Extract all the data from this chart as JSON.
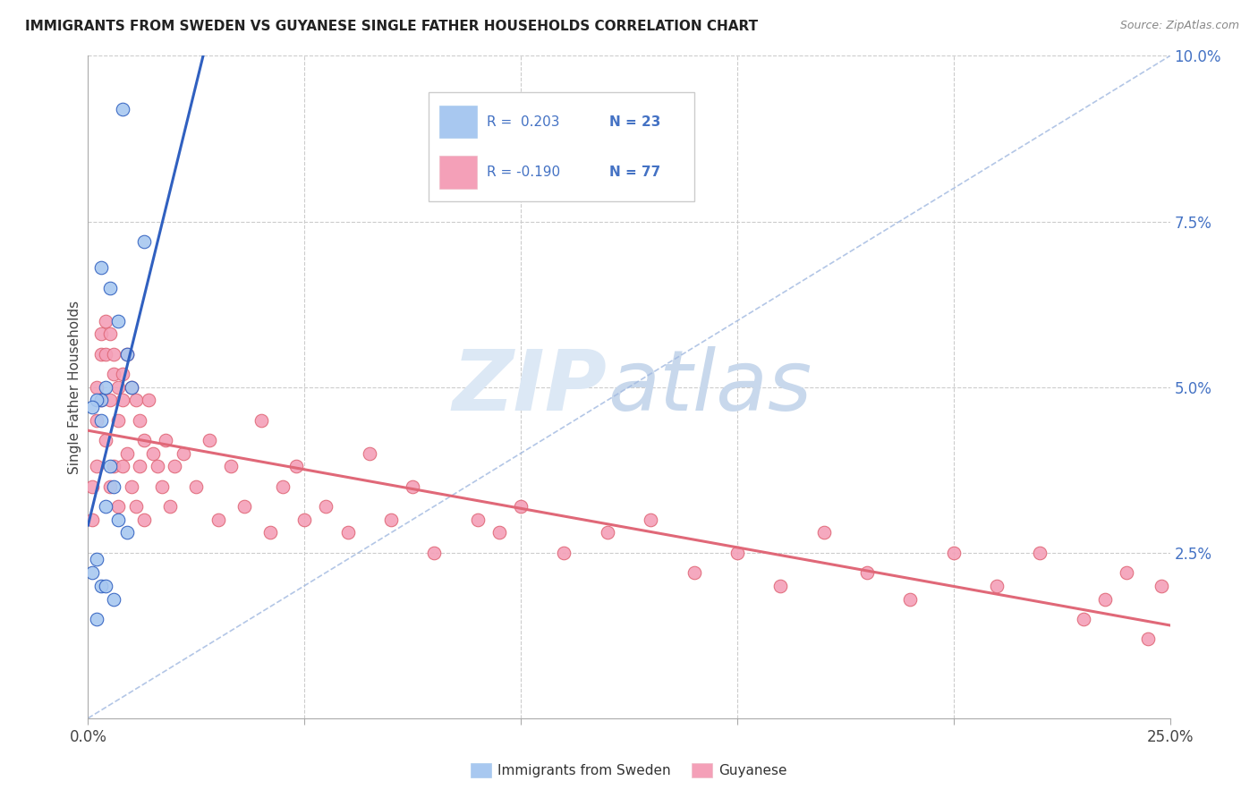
{
  "title": "IMMIGRANTS FROM SWEDEN VS GUYANESE SINGLE FATHER HOUSEHOLDS CORRELATION CHART",
  "source": "Source: ZipAtlas.com",
  "ylabel": "Single Father Households",
  "xlim": [
    0.0,
    0.25
  ],
  "ylim": [
    0.0,
    0.1
  ],
  "color_blue": "#A8C8F0",
  "color_pink": "#F4A0B8",
  "color_blue_line": "#3060C0",
  "color_pink_line": "#E06878",
  "color_dash": "#A0B8E0",
  "color_legend_text": "#4472C4",
  "background": "#FFFFFF",
  "sweden_x": [
    0.008,
    0.013,
    0.003,
    0.005,
    0.007,
    0.009,
    0.01,
    0.003,
    0.004,
    0.002,
    0.001,
    0.003,
    0.005,
    0.006,
    0.004,
    0.007,
    0.009,
    0.002,
    0.001,
    0.003,
    0.004,
    0.006,
    0.002
  ],
  "sweden_y": [
    0.092,
    0.072,
    0.068,
    0.065,
    0.06,
    0.055,
    0.05,
    0.048,
    0.05,
    0.048,
    0.047,
    0.045,
    0.038,
    0.035,
    0.032,
    0.03,
    0.028,
    0.024,
    0.022,
    0.02,
    0.02,
    0.018,
    0.015
  ],
  "guyanese_x": [
    0.001,
    0.001,
    0.002,
    0.002,
    0.002,
    0.003,
    0.003,
    0.003,
    0.004,
    0.004,
    0.004,
    0.005,
    0.005,
    0.005,
    0.006,
    0.006,
    0.006,
    0.007,
    0.007,
    0.007,
    0.008,
    0.008,
    0.008,
    0.009,
    0.009,
    0.01,
    0.01,
    0.011,
    0.011,
    0.012,
    0.012,
    0.013,
    0.013,
    0.014,
    0.015,
    0.016,
    0.017,
    0.018,
    0.019,
    0.02,
    0.022,
    0.025,
    0.028,
    0.03,
    0.033,
    0.036,
    0.04,
    0.042,
    0.045,
    0.048,
    0.05,
    0.055,
    0.06,
    0.065,
    0.07,
    0.075,
    0.08,
    0.09,
    0.095,
    0.1,
    0.11,
    0.12,
    0.13,
    0.14,
    0.15,
    0.16,
    0.17,
    0.18,
    0.19,
    0.2,
    0.21,
    0.22,
    0.23,
    0.235,
    0.24,
    0.245,
    0.248
  ],
  "guyanese_y": [
    0.035,
    0.03,
    0.05,
    0.045,
    0.038,
    0.058,
    0.055,
    0.048,
    0.06,
    0.055,
    0.042,
    0.058,
    0.048,
    0.035,
    0.055,
    0.052,
    0.038,
    0.05,
    0.045,
    0.032,
    0.052,
    0.048,
    0.038,
    0.055,
    0.04,
    0.05,
    0.035,
    0.048,
    0.032,
    0.045,
    0.038,
    0.042,
    0.03,
    0.048,
    0.04,
    0.038,
    0.035,
    0.042,
    0.032,
    0.038,
    0.04,
    0.035,
    0.042,
    0.03,
    0.038,
    0.032,
    0.045,
    0.028,
    0.035,
    0.038,
    0.03,
    0.032,
    0.028,
    0.04,
    0.03,
    0.035,
    0.025,
    0.03,
    0.028,
    0.032,
    0.025,
    0.028,
    0.03,
    0.022,
    0.025,
    0.02,
    0.028,
    0.022,
    0.018,
    0.025,
    0.02,
    0.025,
    0.015,
    0.018,
    0.022,
    0.012,
    0.02
  ]
}
